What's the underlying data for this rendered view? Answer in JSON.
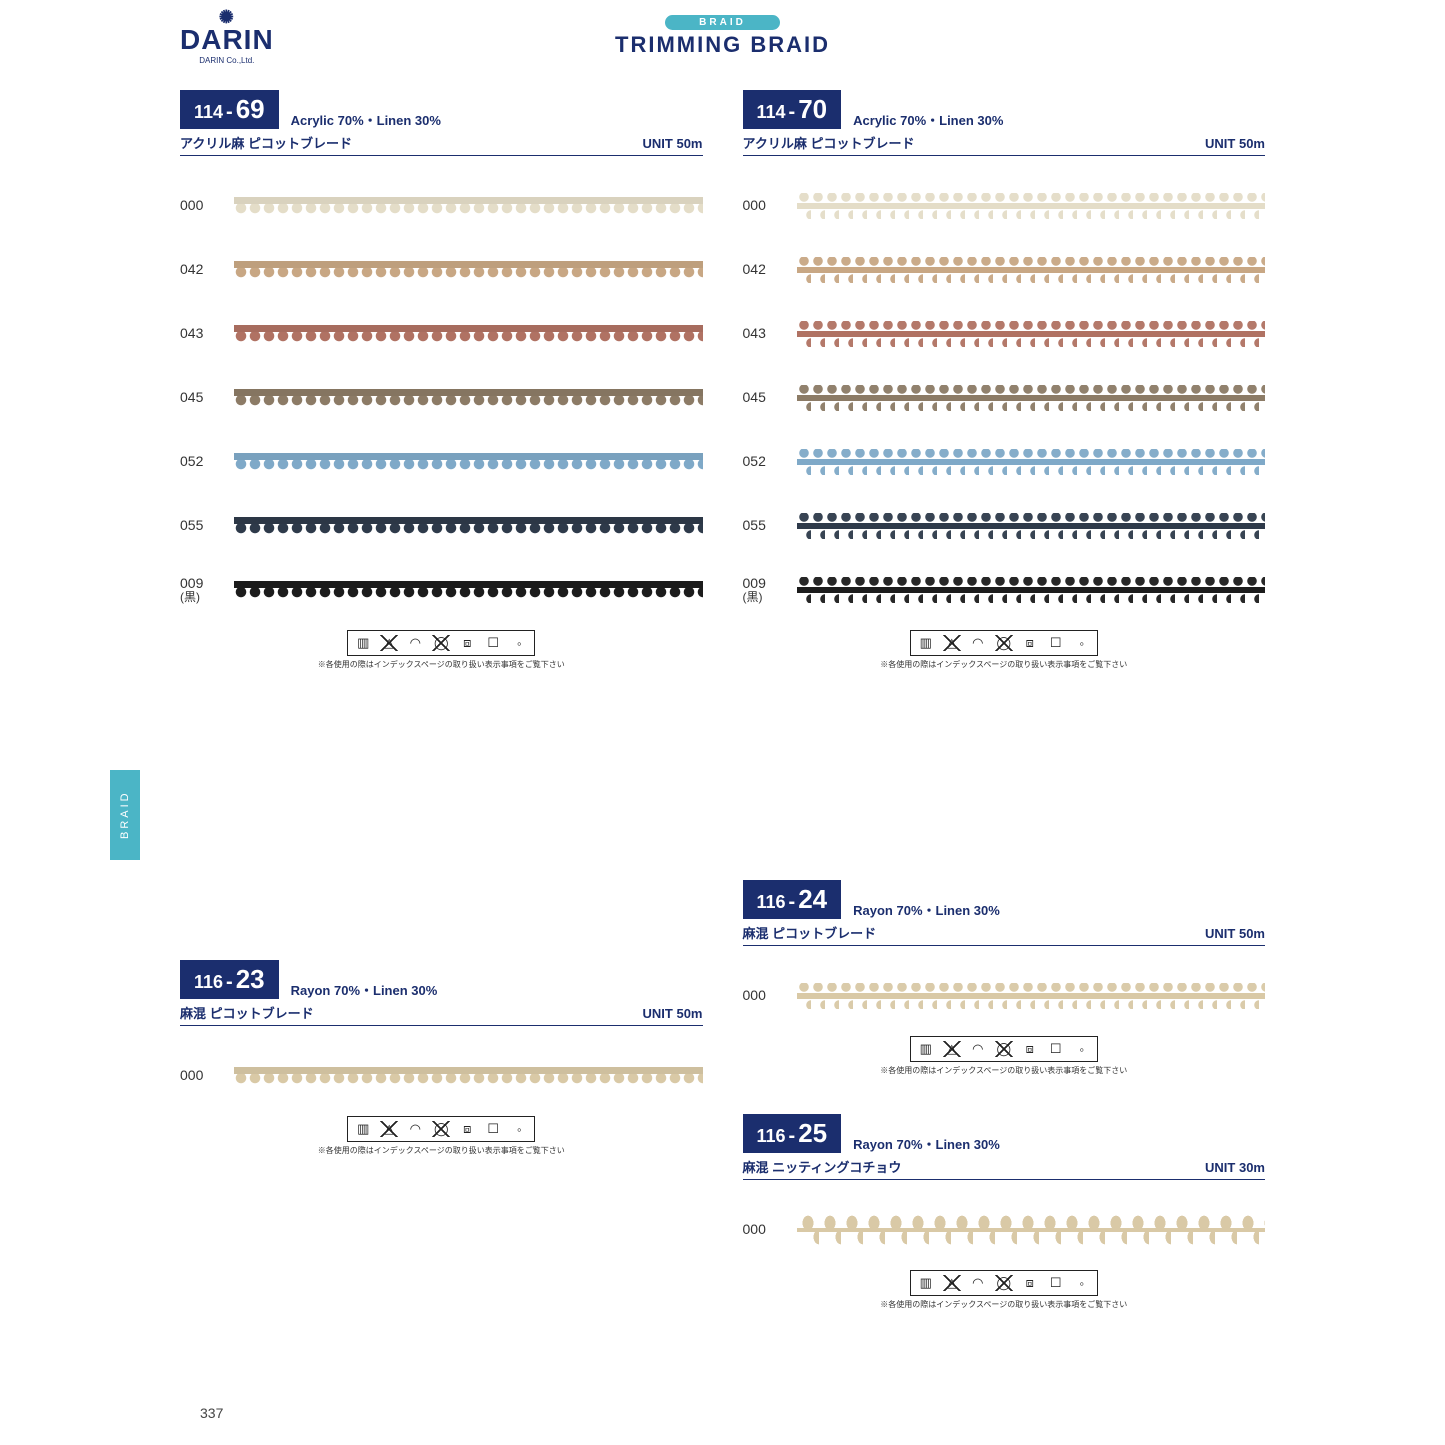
{
  "brand": "DARIN",
  "brand_sub": "DARIN Co.,Ltd.",
  "header_tab": "BRAID",
  "page_title": "TRIMMING  BRAID",
  "side_tab": "BRAID",
  "page_number": "337",
  "care_note": "各使用の際はインデックスページの取り扱い表示事項をご覧下さい",
  "care_icons": [
    {
      "name": "wash-icon",
      "glyph": "▥"
    },
    {
      "name": "bleach-icon",
      "glyph": "△",
      "crossed": true
    },
    {
      "name": "iron-icon",
      "glyph": "◠"
    },
    {
      "name": "dryclean-icon",
      "glyph": "◯",
      "crossed": true
    },
    {
      "name": "wring-icon",
      "glyph": "⧈"
    },
    {
      "name": "dry-icon",
      "glyph": "☐"
    }
  ],
  "products": {
    "p1": {
      "code_main": "114-",
      "code_suffix": "69",
      "composition": "Acrylic 70%・Linen 30%",
      "jp_name": "アクリル麻 ピコットブレード",
      "unit": "UNIT  50m",
      "style": "styleA",
      "swatches": [
        {
          "code": "000",
          "sub": "",
          "color": "#e4ddc8"
        },
        {
          "code": "042",
          "sub": "",
          "color": "#c8a784"
        },
        {
          "code": "043",
          "sub": "",
          "color": "#b07263"
        },
        {
          "code": "045",
          "sub": "",
          "color": "#8c7b66"
        },
        {
          "code": "052",
          "sub": "",
          "color": "#7fa9c8"
        },
        {
          "code": "055",
          "sub": "",
          "color": "#2e3a4a"
        },
        {
          "code": "009",
          "sub": "(黒)",
          "color": "#1c1c1c"
        }
      ]
    },
    "p2": {
      "code_main": "114-",
      "code_suffix": "70",
      "composition": "Acrylic 70%・Linen 30%",
      "jp_name": "アクリル麻 ピコットブレード",
      "unit": "UNIT  50m",
      "style": "styleB",
      "swatches": [
        {
          "code": "000",
          "sub": "",
          "color": "#e4ddc8"
        },
        {
          "code": "042",
          "sub": "",
          "color": "#c8a784"
        },
        {
          "code": "043",
          "sub": "",
          "color": "#b07263"
        },
        {
          "code": "045",
          "sub": "",
          "color": "#8c7b66"
        },
        {
          "code": "052",
          "sub": "",
          "color": "#7fa9c8"
        },
        {
          "code": "055",
          "sub": "",
          "color": "#2e3a4a"
        },
        {
          "code": "009",
          "sub": "(黒)",
          "color": "#1c1c1c"
        }
      ]
    },
    "p3": {
      "code_main": "116-",
      "code_suffix": "23",
      "composition": "Rayon 70%・Linen 30%",
      "jp_name": "麻混 ピコットブレード",
      "unit": "UNIT  50m",
      "style": "styleA",
      "swatches": [
        {
          "code": "000",
          "sub": "",
          "color": "#d9c9a6"
        }
      ]
    },
    "p4": {
      "code_main": "116-",
      "code_suffix": "24",
      "composition": "Rayon 70%・Linen 30%",
      "jp_name": "麻混 ピコットブレード",
      "unit": "UNIT  50m",
      "style": "styleB",
      "swatches": [
        {
          "code": "000",
          "sub": "",
          "color": "#d9c9a6"
        }
      ]
    },
    "p5": {
      "code_main": "116-",
      "code_suffix": "25",
      "composition": "Rayon 70%・Linen 30%",
      "jp_name": "麻混 ニッティングコチョウ",
      "unit": "UNIT  30m",
      "style": "styleC",
      "swatches": [
        {
          "code": "000",
          "sub": "",
          "color": "#d9c9a6"
        }
      ]
    }
  }
}
